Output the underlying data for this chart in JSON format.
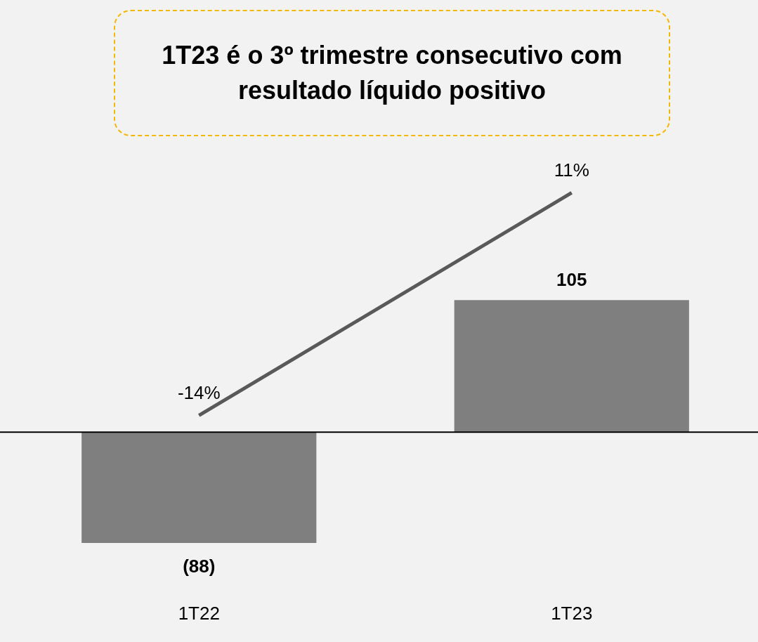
{
  "chart_data": {
    "type": "bar",
    "title": "1T23 é o 3º trimestre consecutivo com resultado líquido positivo",
    "categories": [
      "1T22",
      "1T23"
    ],
    "series": [
      {
        "color": "#7f7f7f",
        "values": [
          -88,
          105
        ],
        "value_labels": [
          "(88)",
          "105"
        ]
      },
      {
        "type": "line",
        "axis": "y2",
        "color": "#595959",
        "values": [
          -14,
          11
        ],
        "value_labels": [
          "-14%",
          "11%"
        ],
        "marker": "none"
      }
    ],
    "grid": false,
    "legend": false
  }
}
